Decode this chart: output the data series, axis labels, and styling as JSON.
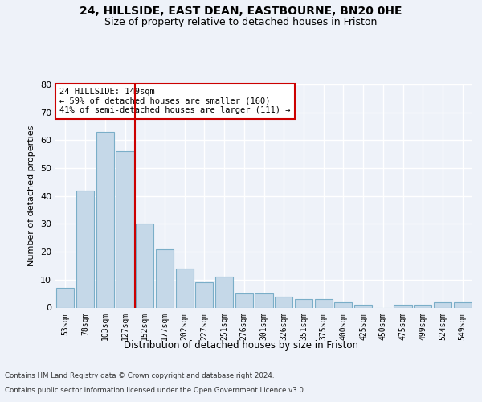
{
  "title1": "24, HILLSIDE, EAST DEAN, EASTBOURNE, BN20 0HE",
  "title2": "Size of property relative to detached houses in Friston",
  "xlabel": "Distribution of detached houses by size in Friston",
  "ylabel": "Number of detached properties",
  "cat_labels": [
    "53sqm",
    "78sqm",
    "103sqm",
    "127sqm",
    "152sqm",
    "177sqm",
    "202sqm",
    "227sqm",
    "251sqm",
    "276sqm",
    "301sqm",
    "326sqm",
    "351sqm",
    "375sqm",
    "400sqm",
    "425sqm",
    "450sqm",
    "475sqm",
    "499sqm",
    "524sqm",
    "549sqm"
  ],
  "values": [
    7,
    42,
    63,
    56,
    30,
    21,
    14,
    9,
    11,
    5,
    5,
    4,
    3,
    3,
    2,
    1,
    0,
    1,
    1,
    2,
    2
  ],
  "bar_color": "#c5d8e8",
  "bar_edge_color": "#7aaec8",
  "vline_x_idx": 4,
  "vline_color": "#cc0000",
  "annotation_text": "24 HILLSIDE: 149sqm\n← 59% of detached houses are smaller (160)\n41% of semi-detached houses are larger (111) →",
  "annotation_box_color": "#ffffff",
  "annotation_box_edge": "#cc0000",
  "background_color": "#eef2f9",
  "grid_color": "#ffffff",
  "ylim": [
    0,
    80
  ],
  "yticks": [
    0,
    10,
    20,
    30,
    40,
    50,
    60,
    70,
    80
  ],
  "footer1": "Contains HM Land Registry data © Crown copyright and database right 2024.",
  "footer2": "Contains public sector information licensed under the Open Government Licence v3.0."
}
